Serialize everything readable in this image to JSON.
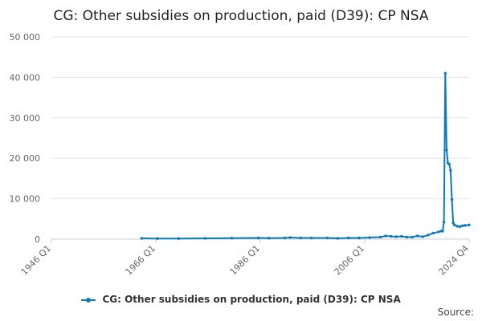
{
  "chart_data": {
    "type": "line",
    "title": "CG: Other subsidies on production, paid (D39): CP NSA",
    "xlabel": "",
    "ylabel": "",
    "x_ticks": [
      "1946 Q1",
      "1966 Q1",
      "1986 Q1",
      "2006 Q1",
      "2024 Q4"
    ],
    "y_ticks": [
      "0",
      "10 000",
      "20 000",
      "30 000",
      "40 000",
      "50 000"
    ],
    "ylim": [
      0,
      50000
    ],
    "xlim": [
      1946.0,
      2024.75
    ],
    "grid": true,
    "legend_position": "bottom",
    "series": [
      {
        "name": "CG: Other subsidies on production, paid (D39): CP NSA",
        "color": "#0f7ab8",
        "x": [
          1963.0,
          1966.0,
          1970.0,
          1975.0,
          1980.0,
          1985.0,
          1987.0,
          1990.0,
          1991.0,
          1993.0,
          1995.0,
          1998.0,
          2000.0,
          2002.0,
          2004.0,
          2006.0,
          2008.0,
          2009.0,
          2010.0,
          2011.0,
          2012.0,
          2013.0,
          2014.0,
          2015.0,
          2016.0,
          2017.0,
          2018.0,
          2019.0,
          2019.5,
          2019.75,
          2020.0,
          2020.25,
          2020.5,
          2020.75,
          2021.0,
          2021.25,
          2021.5,
          2021.75,
          2022.0,
          2022.5,
          2023.0,
          2023.5,
          2024.0,
          2024.75
        ],
        "y": [
          200,
          150,
          150,
          200,
          250,
          300,
          250,
          300,
          400,
          300,
          300,
          300,
          200,
          300,
          300,
          400,
          500,
          800,
          700,
          600,
          700,
          500,
          500,
          800,
          600,
          1000,
          1500,
          1800,
          2000,
          2000,
          4200,
          41000,
          22000,
          18800,
          18500,
          17000,
          9800,
          4000,
          3500,
          3200,
          3100,
          3300,
          3400,
          3500
        ]
      }
    ]
  },
  "legend": {
    "label": "CG: Other subsidies on production, paid (D39): CP NSA"
  },
  "source_label": "Source:"
}
